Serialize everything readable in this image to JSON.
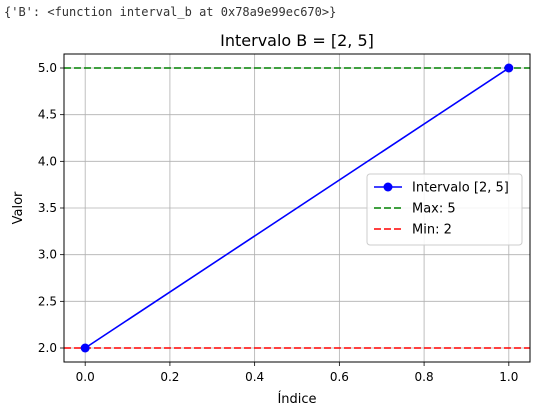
{
  "output_repr": "{'B': <function interval_b at 0x78a9e99ec670>}",
  "chart_data": {
    "type": "line",
    "title": "Intervalo B = [2, 5]",
    "xlabel": "Índice",
    "ylabel": "Valor",
    "xlim": [
      -0.05,
      1.05
    ],
    "ylim": [
      1.85,
      5.15
    ],
    "xticks": [
      0.0,
      0.2,
      0.4,
      0.6,
      0.8,
      1.0
    ],
    "xtick_labels": [
      "0.0",
      "0.2",
      "0.4",
      "0.6",
      "0.8",
      "1.0"
    ],
    "yticks": [
      2.0,
      2.5,
      3.0,
      3.5,
      4.0,
      4.5,
      5.0
    ],
    "ytick_labels": [
      "2.0",
      "2.5",
      "3.0",
      "3.5",
      "4.0",
      "4.5",
      "5.0"
    ],
    "grid": true,
    "legend_position": "center-right",
    "series": [
      {
        "name": "Intervalo [2, 5]",
        "x": [
          0,
          1
        ],
        "y": [
          2,
          5
        ],
        "color": "#0000ff",
        "style": "solid",
        "marker": "circle"
      }
    ],
    "hlines": [
      {
        "name": "Max: 5",
        "y": 5,
        "color": "#008000",
        "style": "dashed"
      },
      {
        "name": "Min: 2",
        "y": 2,
        "color": "#ff0000",
        "style": "dashed"
      }
    ]
  }
}
